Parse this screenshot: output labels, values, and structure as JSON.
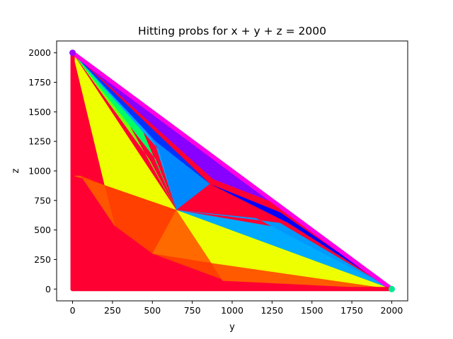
{
  "chart_data": {
    "type": "heatmap",
    "title": "Hitting probs for x + y + z = 2000",
    "xlabel": "y",
    "ylabel": "z",
    "xlim": [
      -100,
      2100
    ],
    "ylim": [
      -100,
      2100
    ],
    "xticks": [
      0,
      250,
      500,
      750,
      1000,
      1250,
      1500,
      1750,
      2000
    ],
    "yticks": [
      0,
      250,
      500,
      750,
      1000,
      1250,
      1500,
      1750,
      2000
    ],
    "grid": false,
    "colormap": "hsv",
    "total": 2000,
    "triangle_vertices": [
      [
        0,
        0
      ],
      [
        2000,
        0
      ],
      [
        0,
        2000
      ]
    ],
    "color_regions": [
      {
        "name": "red",
        "color": "#ff0033",
        "polygon": [
          [
            0,
            0
          ],
          [
            2000,
            0
          ],
          [
            950,
            75
          ],
          [
            500,
            300
          ],
          [
            275,
            525
          ],
          [
            50,
            960
          ],
          [
            0,
            2000
          ]
        ]
      },
      {
        "name": "orange-red",
        "color": "#ff4000",
        "polygon": [
          [
            0,
            2000
          ],
          [
            50,
            960
          ],
          [
            200,
            880
          ],
          [
            650,
            670
          ],
          [
            870,
            220
          ],
          [
            950,
            75
          ],
          [
            2000,
            0
          ],
          [
            650,
            670
          ],
          [
            0,
            2000
          ]
        ]
      },
      {
        "name": "orange",
        "color": "#ff6a00",
        "polygon": [
          [
            50,
            960
          ],
          [
            200,
            880
          ],
          [
            275,
            525
          ],
          [
            650,
            670
          ],
          [
            500,
            300
          ],
          [
            870,
            220
          ],
          [
            650,
            670
          ],
          [
            200,
            880
          ]
        ]
      },
      {
        "name": "yellow",
        "color": "#eeff00",
        "polygon": [
          [
            0,
            2000
          ],
          [
            200,
            880
          ],
          [
            650,
            670
          ],
          [
            2000,
            0
          ],
          [
            870,
            220
          ],
          [
            650,
            670
          ],
          [
            0,
            2000
          ]
        ]
      },
      {
        "name": "green",
        "color": "#66ff00",
        "polygon": [
          [
            0,
            2000
          ],
          [
            450,
            1200
          ],
          [
            650,
            670
          ],
          [
            2000,
            0
          ],
          [
            1100,
            420
          ],
          [
            650,
            670
          ],
          [
            300,
            1500
          ],
          [
            0,
            2000
          ]
        ]
      },
      {
        "name": "cyan",
        "color": "#00ccff",
        "polygon": [
          [
            0,
            2000
          ],
          [
            650,
            670
          ],
          [
            2000,
            0
          ],
          [
            1300,
            520
          ],
          [
            650,
            670
          ],
          [
            0,
            2000
          ]
        ]
      },
      {
        "name": "blue",
        "color": "#0000ff",
        "polygon": [
          [
            0,
            2000
          ],
          [
            650,
            1100
          ],
          [
            2000,
            0
          ],
          [
            860,
            890
          ],
          [
            0,
            2000
          ]
        ]
      },
      {
        "name": "violet",
        "color": "#9000ff",
        "polygon": [
          [
            0,
            2000
          ],
          [
            2000,
            0
          ],
          [
            1000,
            950
          ],
          [
            0,
            2000
          ]
        ]
      },
      {
        "name": "magenta",
        "color": "#ff00e6",
        "polygon": [
          [
            0,
            2000
          ],
          [
            2000,
            0
          ],
          [
            1000,
            1000
          ],
          [
            0,
            2000
          ]
        ]
      }
    ],
    "markers": [
      {
        "x": 2000,
        "y": 0,
        "color": "#00e890"
      },
      {
        "x": 0,
        "y": 2000,
        "color": "#a000ff"
      }
    ]
  }
}
